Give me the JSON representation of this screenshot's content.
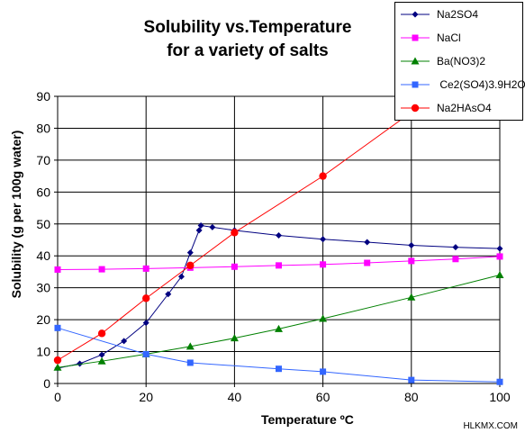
{
  "chart_data": {
    "type": "line",
    "title_line1": "Solubility vs.Temperature",
    "title_line2": "for a variety of salts",
    "xlabel": "Temperature  ºC",
    "ylabel": "Solubility (g per 100g water)",
    "xlim": [
      0,
      100
    ],
    "ylim": [
      0,
      90
    ],
    "xticks": [
      0,
      20,
      40,
      60,
      80,
      100
    ],
    "yticks": [
      0,
      10,
      20,
      30,
      40,
      50,
      60,
      70,
      80,
      90
    ],
    "grid": true,
    "legend_position": "top-right",
    "series": [
      {
        "name": "Na2SO4",
        "color": "#000080",
        "marker": "diamond",
        "points": [
          [
            0,
            4.8
          ],
          [
            5,
            6.2
          ],
          [
            10,
            9.0
          ],
          [
            15,
            13.3
          ],
          [
            20,
            19.0
          ],
          [
            25,
            28.0
          ],
          [
            28,
            33.5
          ],
          [
            30,
            41.0
          ],
          [
            32,
            48.0
          ],
          [
            32.4,
            49.5
          ],
          [
            35,
            49.0
          ],
          [
            40,
            48.0
          ],
          [
            50,
            46.4
          ],
          [
            60,
            45.2
          ],
          [
            70,
            44.3
          ],
          [
            80,
            43.3
          ],
          [
            90,
            42.7
          ],
          [
            100,
            42.3
          ]
        ]
      },
      {
        "name": "NaCl",
        "color": "#ff00ff",
        "marker": "square",
        "points": [
          [
            0,
            35.7
          ],
          [
            10,
            35.8
          ],
          [
            20,
            36.0
          ],
          [
            30,
            36.3
          ],
          [
            40,
            36.6
          ],
          [
            50,
            37.0
          ],
          [
            60,
            37.3
          ],
          [
            70,
            37.8
          ],
          [
            80,
            38.4
          ],
          [
            90,
            39.0
          ],
          [
            100,
            39.8
          ]
        ]
      },
      {
        "name": "Ba(NO3)2",
        "color": "#008000",
        "marker": "triangle",
        "points": [
          [
            0,
            5.0
          ],
          [
            10,
            7.0
          ],
          [
            20,
            9.2
          ],
          [
            30,
            11.6
          ],
          [
            40,
            14.2
          ],
          [
            50,
            17.1
          ],
          [
            60,
            20.3
          ],
          [
            80,
            27.0
          ],
          [
            100,
            34.0
          ]
        ]
      },
      {
        "name": " Ce2(SO4)3.9H2O",
        "color": "#3366ff",
        "marker": "square",
        "points": [
          [
            0,
            17.4
          ],
          [
            20,
            9.2
          ],
          [
            30,
            6.5
          ],
          [
            50,
            4.6
          ],
          [
            60,
            3.7
          ],
          [
            80,
            1.1
          ],
          [
            100,
            0.5
          ]
        ]
      },
      {
        "name": "Na2HAsO4",
        "color": "#ff0000",
        "marker": "circle",
        "points": [
          [
            0,
            7.3
          ],
          [
            10,
            15.7
          ],
          [
            20,
            26.7
          ],
          [
            30,
            37.0
          ],
          [
            40,
            47.3
          ],
          [
            60,
            65.0
          ],
          [
            80,
            85.0
          ]
        ]
      }
    ]
  },
  "watermark": "HLKMX.COM"
}
